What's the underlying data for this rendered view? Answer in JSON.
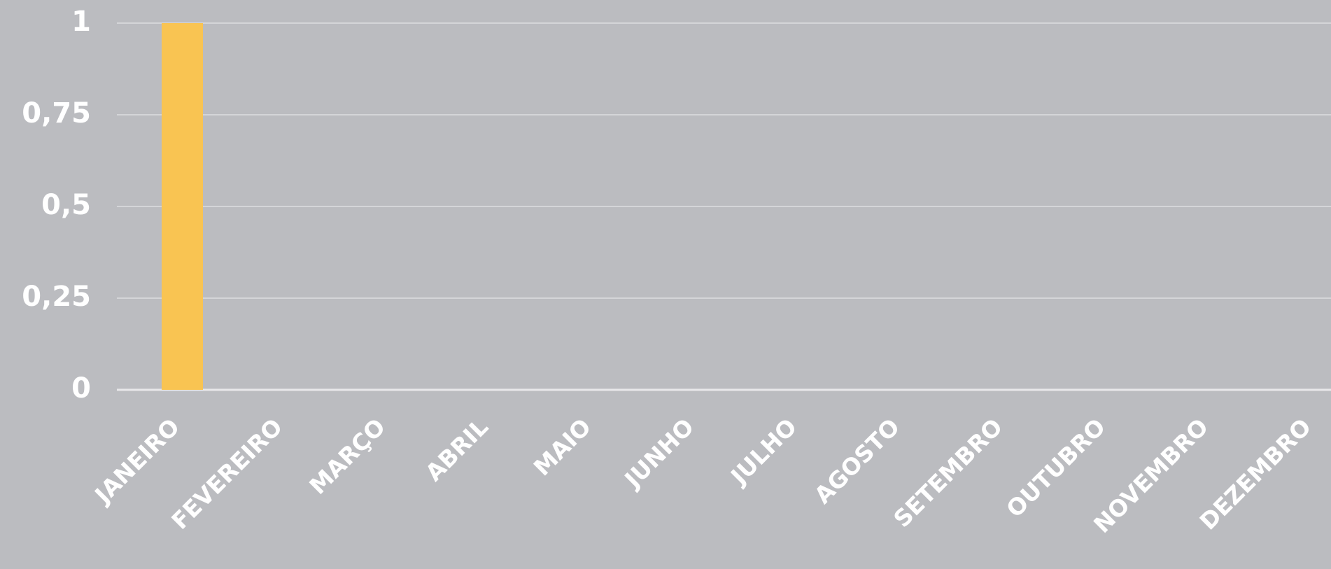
{
  "chart_data": {
    "type": "bar",
    "categories": [
      "JANEIRO",
      "FEVEREIRO",
      "MARÇO",
      "ABRIL",
      "MAIO",
      "JUNHO",
      "JULHO",
      "AGOSTO",
      "SETEMBRO",
      "OUTUBRO",
      "NOVEMBRO",
      "DEZEMBRO"
    ],
    "values": [
      1,
      0,
      0,
      0,
      0,
      0,
      0,
      0,
      0,
      0,
      0,
      0
    ],
    "color": "#f9c452",
    "ylim": [
      0,
      1
    ],
    "yticks": [
      0,
      {
        "value": 0.25,
        "label": "0,25"
      },
      {
        "value": 0.5,
        "label": "0,5"
      },
      {
        "value": 0.75,
        "label": "0,75"
      },
      1
    ],
    "grid": true
  }
}
